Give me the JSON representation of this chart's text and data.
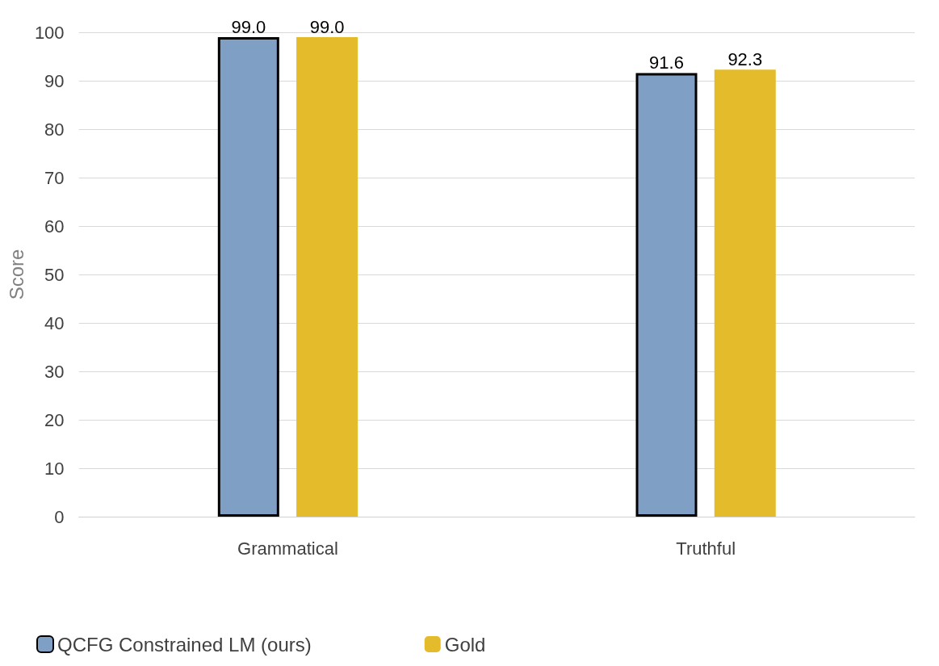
{
  "chart_data": {
    "type": "bar",
    "ylabel": "Score",
    "categories": [
      "Grammatical",
      "Truthful"
    ],
    "series": [
      {
        "name": "QCFG Constrained LM (ours)",
        "color": "#7f9fc4",
        "values": [
          99.0,
          91.6
        ],
        "value_labels": [
          "99.0",
          "91.6"
        ]
      },
      {
        "name": "Gold",
        "color": "#e4bb2a",
        "values": [
          99.0,
          92.3
        ],
        "value_labels": [
          "99.0",
          "92.3"
        ]
      }
    ],
    "ylim": [
      0,
      100
    ],
    "yticks": [
      0,
      10,
      20,
      30,
      40,
      50,
      60,
      70,
      80,
      90,
      100
    ],
    "grid": "y",
    "legend": "bottom left"
  }
}
